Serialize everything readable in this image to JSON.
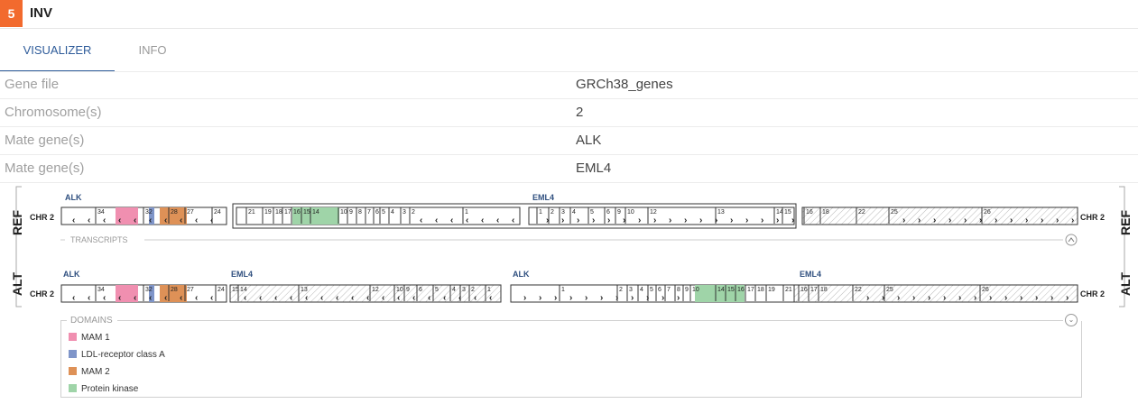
{
  "header": {
    "badge": "5",
    "title": "INV"
  },
  "tabs": [
    {
      "label": "VISUALIZER",
      "active": true
    },
    {
      "label": "INFO",
      "active": false
    }
  ],
  "info_rows": [
    {
      "key": "Gene file",
      "value": "GRCh38_genes"
    },
    {
      "key": "Chromosome(s)",
      "value": "2"
    },
    {
      "key": "Mate gene(s)",
      "value": "ALK"
    },
    {
      "key": "Mate gene(s)",
      "value": "EML4"
    }
  ],
  "viz": {
    "ref_label": "REF",
    "alt_label": "ALT",
    "chr_label": "CHR 2",
    "transcripts_label": "TRANSCRIPTS",
    "ref_genes": [
      "ALK",
      "EML4"
    ],
    "alt_genes": [
      "ALK",
      "EML4",
      "ALK",
      "EML4"
    ],
    "ref_alk_exons": [
      "34",
      "32",
      "28",
      "27",
      "24"
    ],
    "ref_alk2_exons": [
      "21",
      "19",
      "18",
      "17",
      "16",
      "15",
      "14",
      "10",
      "9",
      "8",
      "7",
      "6",
      "5",
      "4",
      "3",
      "2",
      "1"
    ],
    "ref_eml4_exons": [
      "1",
      "2",
      "3",
      "4",
      "5",
      "6",
      "9",
      "10",
      "12",
      "13",
      "14",
      "15"
    ],
    "ref_eml4b_exons": [
      "16",
      "18",
      "22",
      "25",
      "26"
    ],
    "alt_left_exons": [
      "34",
      "32",
      "28",
      "27",
      "24",
      "15",
      "14",
      "13",
      "12",
      "10",
      "9",
      "6",
      "5",
      "4",
      "3",
      "2",
      "1"
    ],
    "alt_right_exons": [
      "1",
      "2",
      "3",
      "4",
      "5",
      "6",
      "7",
      "8",
      "9",
      "10",
      "14",
      "15",
      "16",
      "17",
      "18",
      "19",
      "21",
      "16",
      "17",
      "18",
      "22",
      "25",
      "26"
    ]
  },
  "legend": {
    "title": "DOMAINS",
    "items": [
      {
        "label": "MAM 1",
        "color": "#f08fb0"
      },
      {
        "label": "LDL-receptor class A",
        "color": "#7f95c9"
      },
      {
        "label": "MAM 2",
        "color": "#de9157"
      },
      {
        "label": "Protein kinase",
        "color": "#9fd4a8"
      }
    ]
  },
  "colors": {
    "accent": "#f26a2e",
    "tab_active": "#2f5c9a",
    "gene_label": "#2f4f7f"
  }
}
